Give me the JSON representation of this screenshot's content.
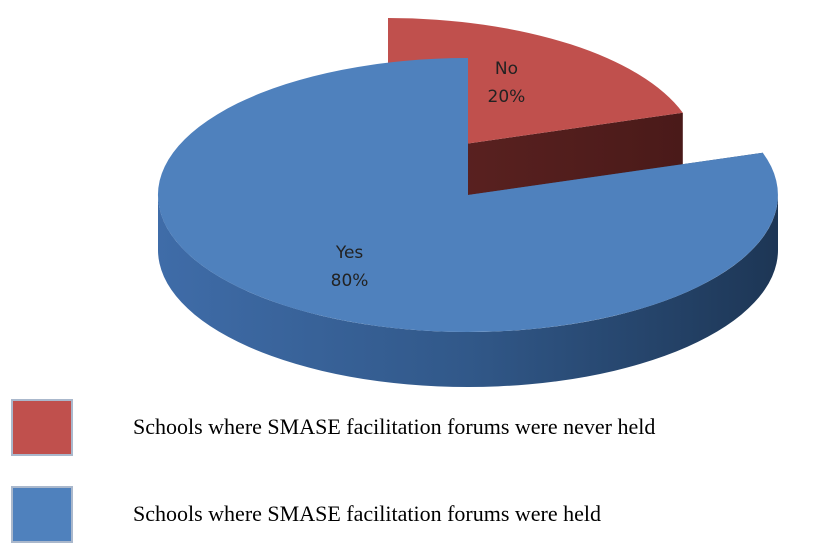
{
  "chart_data": {
    "type": "pie",
    "categories": [
      "No",
      "Yes"
    ],
    "values": [
      20,
      80
    ],
    "value_labels": [
      "20%",
      "80%"
    ],
    "colors": [
      "#c0504d",
      "#4f81bd"
    ],
    "legend": [
      "Schools where SMASE facilitation forums were never held",
      "Schools where SMASE facilitation forums were held"
    ]
  }
}
